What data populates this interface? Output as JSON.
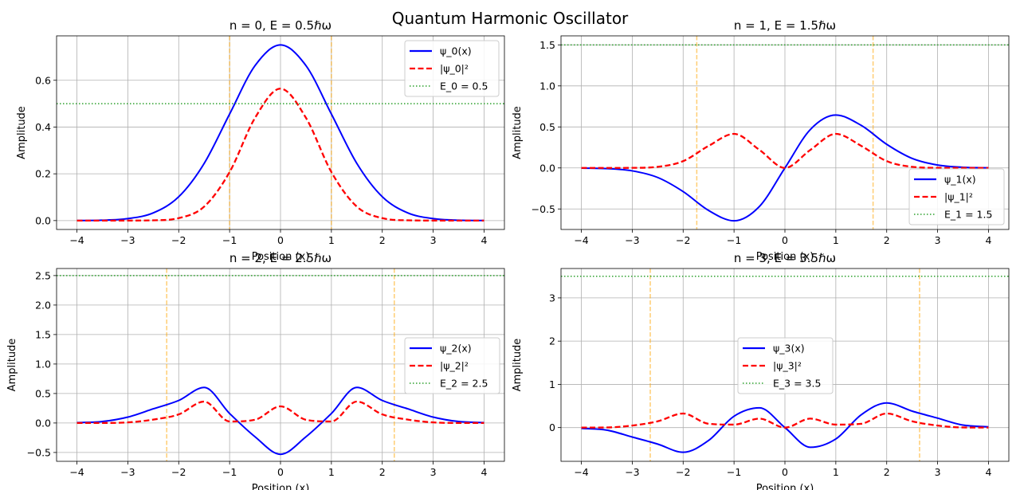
{
  "figure": {
    "title": "Quantum Harmonic Oscillator"
  },
  "colors": {
    "psi": "#0000ff",
    "prob": "#ff0000",
    "energy": "#2ca02c",
    "turning": "#ffa500",
    "grid": "#b0b0b0"
  },
  "chart_data": [
    {
      "type": "line",
      "n": 0,
      "title": "n = 0, E = 0.5ℏω",
      "xlabel": "Position (x)",
      "ylabel": "Amplitude",
      "xlim": [
        -4.4,
        4.4
      ],
      "ylim": [
        -0.038,
        0.79
      ],
      "xticks": [
        -4,
        -3,
        -2,
        -1,
        0,
        1,
        2,
        3,
        4
      ],
      "yticks": [
        0.0,
        0.2,
        0.4,
        0.6
      ],
      "ytick_labels": [
        "0.0",
        "0.2",
        "0.4",
        "0.6"
      ],
      "energy": 0.5,
      "turning_points": [
        -1.0,
        1.0
      ],
      "legend_position": "upper right",
      "series": [
        {
          "name": "ψ_0(x)",
          "style": "solid",
          "color": "#0000ff",
          "x": [
            -4,
            -3.5,
            -3,
            -2.5,
            -2,
            -1.5,
            -1,
            -0.5,
            0,
            0.5,
            1,
            1.5,
            2,
            2.5,
            3,
            3.5,
            4
          ],
          "y": [
            0.0003,
            0.0016,
            0.0084,
            0.0329,
            0.1019,
            0.2443,
            0.4556,
            0.6628,
            0.7511,
            0.6628,
            0.4556,
            0.2443,
            0.1019,
            0.0329,
            0.0084,
            0.0016,
            0.0003
          ]
        },
        {
          "name": "|ψ_0|²",
          "style": "dashed",
          "color": "#ff0000",
          "x": [
            -4,
            -3.5,
            -3,
            -2.5,
            -2,
            -1.5,
            -1,
            -0.5,
            0,
            0.5,
            1,
            1.5,
            2,
            2.5,
            3,
            3.5,
            4
          ],
          "y": [
            0.0,
            0.0,
            0.0001,
            0.0011,
            0.0104,
            0.0597,
            0.2076,
            0.4394,
            0.5642,
            0.4394,
            0.2076,
            0.0597,
            0.0104,
            0.0011,
            0.0001,
            0.0,
            0.0
          ]
        },
        {
          "name": "E_0 = 0.5",
          "style": "dotted",
          "color": "#2ca02c",
          "y_const": 0.5
        }
      ]
    },
    {
      "type": "line",
      "n": 1,
      "title": "n = 1, E = 1.5ℏω",
      "xlabel": "Position (x)",
      "ylabel": "Amplitude",
      "xlim": [
        -4.4,
        4.4
      ],
      "ylim": [
        -0.75,
        1.61
      ],
      "xticks": [
        -4,
        -3,
        -2,
        -1,
        0,
        1,
        2,
        3,
        4
      ],
      "yticks": [
        -0.5,
        0.0,
        0.5,
        1.0,
        1.5
      ],
      "ytick_labels": [
        "−0.5",
        "0.0",
        "0.5",
        "1.0",
        "1.5"
      ],
      "energy": 1.5,
      "turning_points": [
        -1.732,
        1.732
      ],
      "legend_position": "lower right",
      "series": [
        {
          "name": "ψ_1(x)",
          "style": "solid",
          "color": "#0000ff",
          "x": [
            -4,
            -3.5,
            -3,
            -2.5,
            -2,
            -1.5,
            -1,
            -0.5,
            0,
            0.5,
            1,
            1.5,
            2,
            2.5,
            3,
            3.5,
            4
          ],
          "y": [
            -0.0019,
            -0.0078,
            -0.0355,
            -0.1163,
            -0.2881,
            -0.5183,
            -0.6443,
            -0.4687,
            0.0,
            0.4687,
            0.6443,
            0.5183,
            0.2881,
            0.1163,
            0.0355,
            0.0078,
            0.0019
          ]
        },
        {
          "name": "|ψ_1|²",
          "style": "dashed",
          "color": "#ff0000",
          "x": [
            -4,
            -3.5,
            -3,
            -2.5,
            -2,
            -1.5,
            -1,
            -0.5,
            0,
            0.5,
            1,
            1.5,
            2,
            2.5,
            3,
            3.5,
            4
          ],
          "y": [
            0.0,
            0.0001,
            0.0013,
            0.0135,
            0.083,
            0.2686,
            0.4151,
            0.2197,
            0.0,
            0.2197,
            0.4151,
            0.2686,
            0.083,
            0.0135,
            0.0013,
            0.0001,
            0.0
          ]
        },
        {
          "name": "E_1 = 1.5",
          "style": "dotted",
          "color": "#2ca02c",
          "y_const": 1.5
        }
      ]
    },
    {
      "type": "line",
      "n": 2,
      "title": "n = 2, E = 2.5ℏω",
      "xlabel": "Position (x)",
      "ylabel": "Amplitude",
      "xlim": [
        -4.4,
        4.4
      ],
      "ylim": [
        -0.65,
        2.62
      ],
      "xticks": [
        -4,
        -3,
        -2,
        -1,
        0,
        1,
        2,
        3,
        4
      ],
      "yticks": [
        -0.5,
        0.0,
        0.5,
        1.0,
        1.5,
        2.0,
        2.5
      ],
      "ytick_labels": [
        "−0.5",
        "0.0",
        "0.5",
        "1.0",
        "1.5",
        "2.0",
        "2.5"
      ],
      "energy": 2.5,
      "turning_points": [
        -2.236,
        2.236
      ],
      "legend_position": "center right",
      "series": [
        {
          "name": "ψ_2(x)",
          "style": "solid",
          "color": "#0000ff",
          "x": [
            -4,
            -3.5,
            -3,
            -2.5,
            -2,
            -1.5,
            -1,
            -0.5,
            0,
            0.5,
            1,
            1.5,
            2,
            2.5,
            3,
            3.5,
            4
          ],
          "y": [
            0.0066,
            0.0252,
            0.1002,
            0.2403,
            0.382,
            0.6027,
            0.1611,
            -0.2343,
            -0.5311,
            -0.2343,
            0.1611,
            0.6027,
            0.382,
            0.2403,
            0.1002,
            0.0252,
            0.0066
          ]
        },
        {
          "name": "|ψ_2|²",
          "style": "dashed",
          "color": "#ff0000",
          "x": [
            -4,
            -3.5,
            -3,
            -2.5,
            -2,
            -1.5,
            -1,
            -0.5,
            0,
            0.5,
            1,
            1.5,
            2,
            2.5,
            3,
            3.5,
            4
          ],
          "y": [
            0.0,
            0.0006,
            0.01,
            0.0577,
            0.1459,
            0.3633,
            0.026,
            0.0549,
            0.2821,
            0.0549,
            0.026,
            0.3633,
            0.1459,
            0.0577,
            0.01,
            0.0006,
            0.0
          ]
        },
        {
          "name": "E_2 = 2.5",
          "style": "dotted",
          "color": "#2ca02c",
          "y_const": 2.5
        }
      ]
    },
    {
      "type": "line",
      "n": 3,
      "title": "n = 3, E = 3.5ℏω",
      "xlabel": "Position (x)",
      "ylabel": "Amplitude",
      "xlim": [
        -4.4,
        4.4
      ],
      "ylim": [
        -0.78,
        3.68
      ],
      "xticks": [
        -4,
        -3,
        -2,
        -1,
        0,
        1,
        2,
        3,
        4
      ],
      "yticks": [
        0,
        1,
        2,
        3
      ],
      "ytick_labels": [
        "0",
        "1",
        "2",
        "3"
      ],
      "energy": 3.5,
      "turning_points": [
        -2.646,
        2.646
      ],
      "legend_position": "center",
      "series": [
        {
          "name": "ψ_3(x)",
          "style": "solid",
          "color": "#0000ff",
          "x": [
            -4,
            -3.5,
            -3,
            -2.5,
            -2,
            -1.5,
            -1,
            -0.5,
            0,
            0.5,
            1,
            1.5,
            2,
            2.5,
            3,
            3.5,
            4
          ],
          "y": [
            -0.0172,
            -0.0582,
            -0.2183,
            -0.3814,
            -0.571,
            -0.298,
            0.263,
            0.456,
            0.0,
            -0.456,
            -0.263,
            0.298,
            0.571,
            0.3814,
            0.2183,
            0.0582,
            0.0172
          ]
        },
        {
          "name": "|ψ_3|²",
          "style": "dashed",
          "color": "#ff0000",
          "x": [
            -4,
            -3.5,
            -3,
            -2.5,
            -2,
            -1.5,
            -1,
            -0.5,
            0,
            0.5,
            1,
            1.5,
            2,
            2.5,
            3,
            3.5,
            4
          ],
          "y": [
            0.0003,
            0.0034,
            0.0477,
            0.1455,
            0.326,
            0.0888,
            0.0692,
            0.2079,
            0.0,
            0.2079,
            0.0692,
            0.0888,
            0.326,
            0.1455,
            0.0477,
            0.0034,
            0.0003
          ]
        },
        {
          "name": "E_3 = 3.5",
          "style": "dotted",
          "color": "#2ca02c",
          "y_const": 3.5
        }
      ]
    }
  ]
}
